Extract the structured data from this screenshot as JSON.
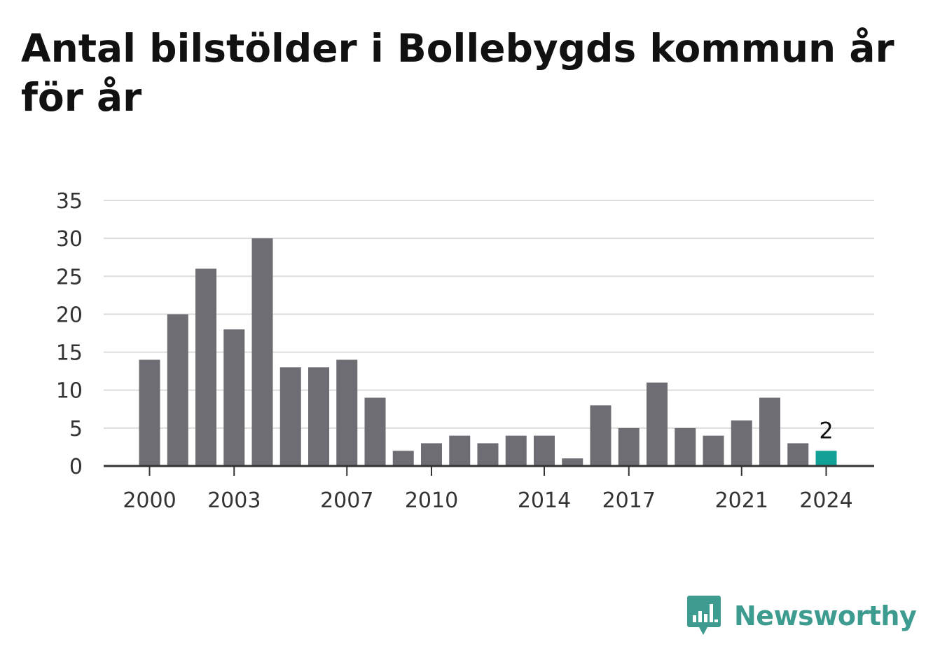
{
  "title": "Antal bilstölder i Bollebygds kommun år för år",
  "brand": {
    "name": "Newsworthy",
    "icon": "newsworthy-logo-icon",
    "color": "#3d9b8f"
  },
  "chart_data": {
    "type": "bar",
    "title": "Antal bilstölder i Bollebygds kommun år för år",
    "xlabel": "",
    "ylabel": "",
    "categories": [
      "2000",
      "2001",
      "2002",
      "2003",
      "2004",
      "2005",
      "2006",
      "2007",
      "2008",
      "2009",
      "2010",
      "2011",
      "2012",
      "2013",
      "2014",
      "2015",
      "2016",
      "2017",
      "2018",
      "2019",
      "2020",
      "2021",
      "2022",
      "2023",
      "2024"
    ],
    "values": [
      14,
      20,
      26,
      18,
      30,
      13,
      13,
      14,
      9,
      2,
      3,
      4,
      3,
      4,
      4,
      1,
      8,
      5,
      11,
      5,
      4,
      6,
      9,
      3,
      2
    ],
    "x_tick_labels": [
      "2000",
      "2003",
      "2007",
      "2010",
      "2014",
      "2017",
      "2021",
      "2024"
    ],
    "y_ticks": [
      0,
      5,
      10,
      15,
      20,
      25,
      30,
      35
    ],
    "ylim": [
      0,
      35
    ],
    "grid": true,
    "bar_color": "#6e6d73",
    "highlight_color": "#13a096",
    "highlight_category": "2024",
    "data_labels": [
      {
        "category": "2024",
        "text": "2"
      }
    ]
  }
}
